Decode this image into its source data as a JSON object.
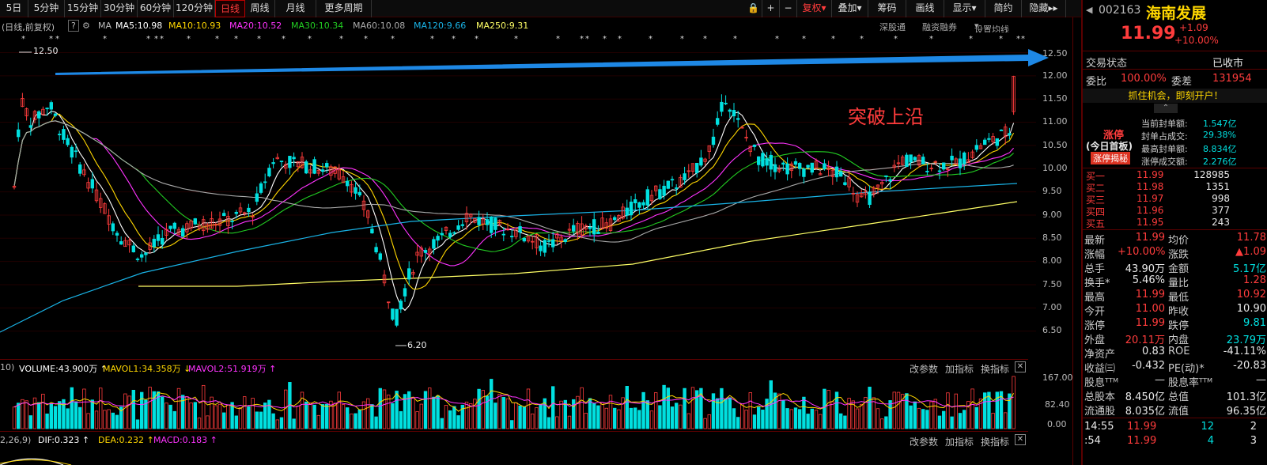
{
  "toolbar": {
    "items": [
      "5日",
      "5分钟",
      "15分钟",
      "30分钟",
      "60分钟",
      "120分钟",
      "日线",
      "周线",
      "月线",
      "更多周期"
    ],
    "right": [
      "复权",
      "叠加",
      "筹码",
      "画线",
      "显示",
      "简约",
      "隐藏"
    ],
    "icons": [
      "lock-icon",
      "plus-icon",
      "minus-icon"
    ]
  },
  "info": {
    "prefix": "(日线,前复权)",
    "help": "?",
    "ma": "MA",
    "ma5": "MA5:10.98",
    "ma10": "MA10:10.93",
    "ma20": "MA20:10.52",
    "ma30": "MA30:10.34",
    "ma60": "MA60:10.08",
    "ma120": "MA120:9.66",
    "ma250": "MA250:9.31",
    "right1": "深股通",
    "right2": "融资融券",
    "right3": "设置均线"
  },
  "colors": {
    "up": "#ff3c3c",
    "down": "#00e0e0",
    "ma5": "#ffffff",
    "ma10": "#ffd700",
    "ma20": "#ff33ff",
    "ma30": "#22cc22",
    "ma60": "#aaaaaa",
    "ma120": "#19b3e6",
    "ma250": "#ffff66"
  },
  "chart_data": {
    "type": "candlestick",
    "price_axis": [
      "12.50",
      "12.00",
      "11.50",
      "11.00",
      "10.50",
      "10.00",
      "9.50",
      "9.00",
      "8.50",
      "8.00",
      "7.50",
      "7.00",
      "6.50"
    ],
    "max_label": "12.50",
    "min_label": "6.20",
    "annotation": "突破上沿",
    "volume_axis": [
      "167.00",
      "82.40",
      "0.00"
    ]
  },
  "vol": {
    "prefix": "10)",
    "volume": "VOLUME:43.900万",
    "mavol1": "MAVOL1:34.358万",
    "mavol2": "MAVOL2:51.919万"
  },
  "macd": {
    "prefix": "2,26,9)",
    "dif": "DIF:0.323",
    "dea": "DEA:0.232",
    "macd": "MACD:0.183"
  },
  "panel": {
    "links": [
      "改参数",
      "加指标",
      "换指标"
    ]
  },
  "stock": {
    "code": "002163",
    "name": "海南发展",
    "price": "11.99",
    "change": "+1.09",
    "pct": "+10.00%",
    "status_label": "交易状态",
    "status": "已收市",
    "wb_label": "委比",
    "wb": "100.00%",
    "wc_label": "委差",
    "wc": "131954",
    "promo": "抓住机会，即刻开户！",
    "limit": {
      "title": "涨停",
      "sub": "(今日首板)",
      "btn": "涨停揭秘",
      "rows": [
        {
          "k": "当前封单额:",
          "v": "1.547亿"
        },
        {
          "k": "封单占成交:",
          "v": "29.38%"
        },
        {
          "k": "最高封单额:",
          "v": "8.834亿"
        },
        {
          "k": "涨停成交额:",
          "v": "2.276亿"
        }
      ]
    },
    "bids": [
      {
        "k": "买一",
        "p": "11.99",
        "v": "128985"
      },
      {
        "k": "买二",
        "p": "11.98",
        "v": "1351"
      },
      {
        "k": "买三",
        "p": "11.97",
        "v": "998"
      },
      {
        "k": "买四",
        "p": "11.96",
        "v": "377"
      },
      {
        "k": "买五",
        "p": "11.95",
        "v": "243"
      }
    ],
    "quote": [
      {
        "k1": "最新",
        "v1": "11.99",
        "c1": "r",
        "k2": "均价",
        "v2": "11.78",
        "c2": "r"
      },
      {
        "k1": "涨幅",
        "v1": "+10.00%",
        "c1": "r",
        "k2": "涨跌",
        "v2": "▲1.09",
        "c2": "r"
      },
      {
        "k1": "总手",
        "v1": "43.90万",
        "c1": "wh",
        "k2": "金额",
        "v2": "5.17亿",
        "c2": "g"
      },
      {
        "k1": "换手*",
        "v1": "5.46%",
        "c1": "wh",
        "k2": "量比",
        "v2": "1.28",
        "c2": "r"
      },
      {
        "k1": "最高",
        "v1": "11.99",
        "c1": "r",
        "k2": "最低",
        "v2": "10.92",
        "c2": "r"
      },
      {
        "k1": "今开",
        "v1": "11.00",
        "c1": "r",
        "k2": "昨收",
        "v2": "10.90",
        "c2": "wh"
      },
      {
        "k1": "涨停",
        "v1": "11.99",
        "c1": "r",
        "k2": "跌停",
        "v2": "9.81",
        "c2": "g"
      },
      {
        "k1": "外盘",
        "v1": "20.11万",
        "c1": "r",
        "k2": "内盘",
        "v2": "23.79万",
        "c2": "g"
      },
      {
        "k1": "净资产",
        "v1": "0.83",
        "c1": "wh",
        "k2": "ROE",
        "v2": "-41.11%",
        "c2": "wh"
      },
      {
        "k1": "收益㈢",
        "v1": "-0.432",
        "c1": "wh",
        "k2": "PE(动)*",
        "v2": "-20.83",
        "c2": "wh"
      },
      {
        "k1": "股息ᵀᵀᴹ",
        "v1": "—",
        "c1": "wh",
        "k2": "股息率ᵀᵀᴹ",
        "v2": "—",
        "c2": "wh"
      },
      {
        "k1": "总股本",
        "v1": "8.450亿",
        "c1": "wh",
        "k2": "总值",
        "v2": "101.3亿",
        "c2": "wh"
      },
      {
        "k1": "流通股",
        "v1": "8.035亿",
        "c1": "wh",
        "k2": "流值",
        "v2": "96.35亿",
        "c2": "wh"
      }
    ],
    "ticks": [
      {
        "t": "14:55",
        "p": "11.99",
        "v": "12",
        "n": "2"
      },
      {
        "t": ":54",
        "p": "11.99",
        "v": "4",
        "n": "3"
      }
    ]
  }
}
